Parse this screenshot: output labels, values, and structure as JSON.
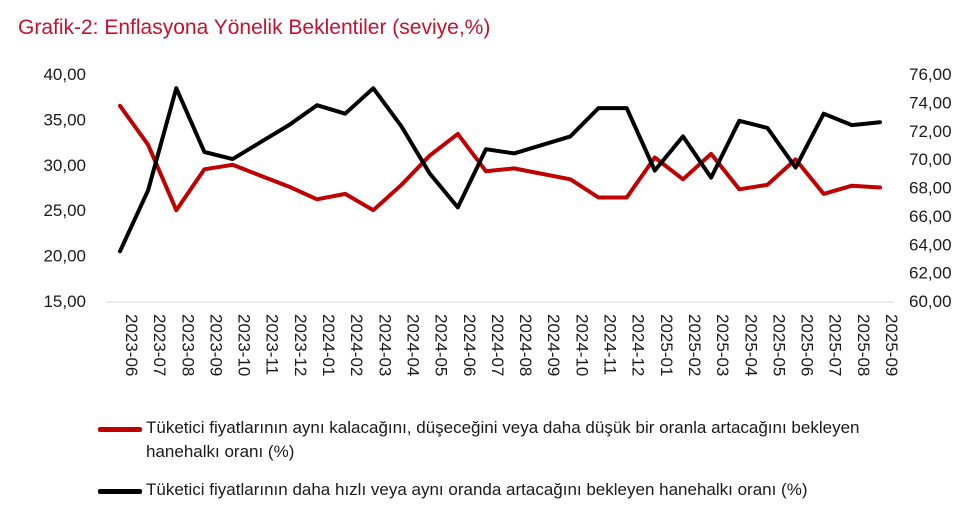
{
  "header": {
    "title": "Grafik-2: Enflasyona Yönelik Beklentiler (seviye,%)"
  },
  "colors": {
    "title": "#c8102e",
    "series_1": "#c00000",
    "series_2": "#000000"
  },
  "chart_data": {
    "type": "line",
    "categories": [
      "2023-06",
      "2023-07",
      "2023-08",
      "2023-09",
      "2023-10",
      "2023-11",
      "2023-12",
      "2024-01",
      "2024-02",
      "2024-03",
      "2024-04",
      "2024-05",
      "2024-06",
      "2024-07",
      "2024-08",
      "2024-09",
      "2024-10",
      "2024-11",
      "2024-12",
      "2025-01",
      "2025-02",
      "2025-03",
      "2025-04",
      "2025-05",
      "2025-06",
      "2025-07",
      "2025-08",
      "2025-09"
    ],
    "y_left": {
      "ylim": [
        15,
        40
      ],
      "ticks": [
        15,
        20,
        25,
        30,
        35,
        40
      ],
      "tick_labels": [
        "15,00",
        "20,00",
        "25,00",
        "30,00",
        "35,00",
        "40,00"
      ]
    },
    "y_right": {
      "ylim": [
        60,
        76
      ],
      "ticks": [
        60,
        62,
        64,
        66,
        68,
        70,
        72,
        74,
        76
      ],
      "tick_labels": [
        "60,00",
        "62,00",
        "64,00",
        "66,00",
        "68,00",
        "70,00",
        "72,00",
        "74,00",
        "76,00"
      ]
    },
    "series": [
      {
        "name": "Tüketici fiyatlarının aynı kalacağını, düşeceğini veya daha düşük bir oranla artacağını bekleyen hanehalkı oranı (%)",
        "axis": "left",
        "color": "#c00000",
        "values": [
          36.5,
          32.2,
          25.0,
          29.5,
          30.0,
          28.8,
          27.6,
          26.2,
          26.8,
          25.0,
          27.8,
          31.0,
          33.4,
          29.3,
          29.6,
          29.0,
          28.4,
          26.4,
          26.4,
          30.8,
          28.4,
          31.2,
          27.3,
          27.8,
          30.6,
          26.8,
          27.7,
          27.5
        ]
      },
      {
        "name": "Tüketici fiyatlarının daha hızlı veya aynı oranda artacağını bekleyen hanehalkı oranı (%)",
        "axis": "right",
        "color": "#000000",
        "values": [
          63.5,
          67.8,
          75.0,
          70.5,
          70.0,
          71.2,
          72.4,
          73.8,
          73.2,
          75.0,
          72.3,
          69.0,
          66.6,
          70.7,
          70.4,
          71.0,
          71.6,
          73.6,
          73.6,
          69.2,
          71.6,
          68.7,
          72.7,
          72.2,
          69.4,
          73.2,
          72.4,
          72.6
        ]
      }
    ],
    "legend_position": "bottom",
    "grid": false
  }
}
